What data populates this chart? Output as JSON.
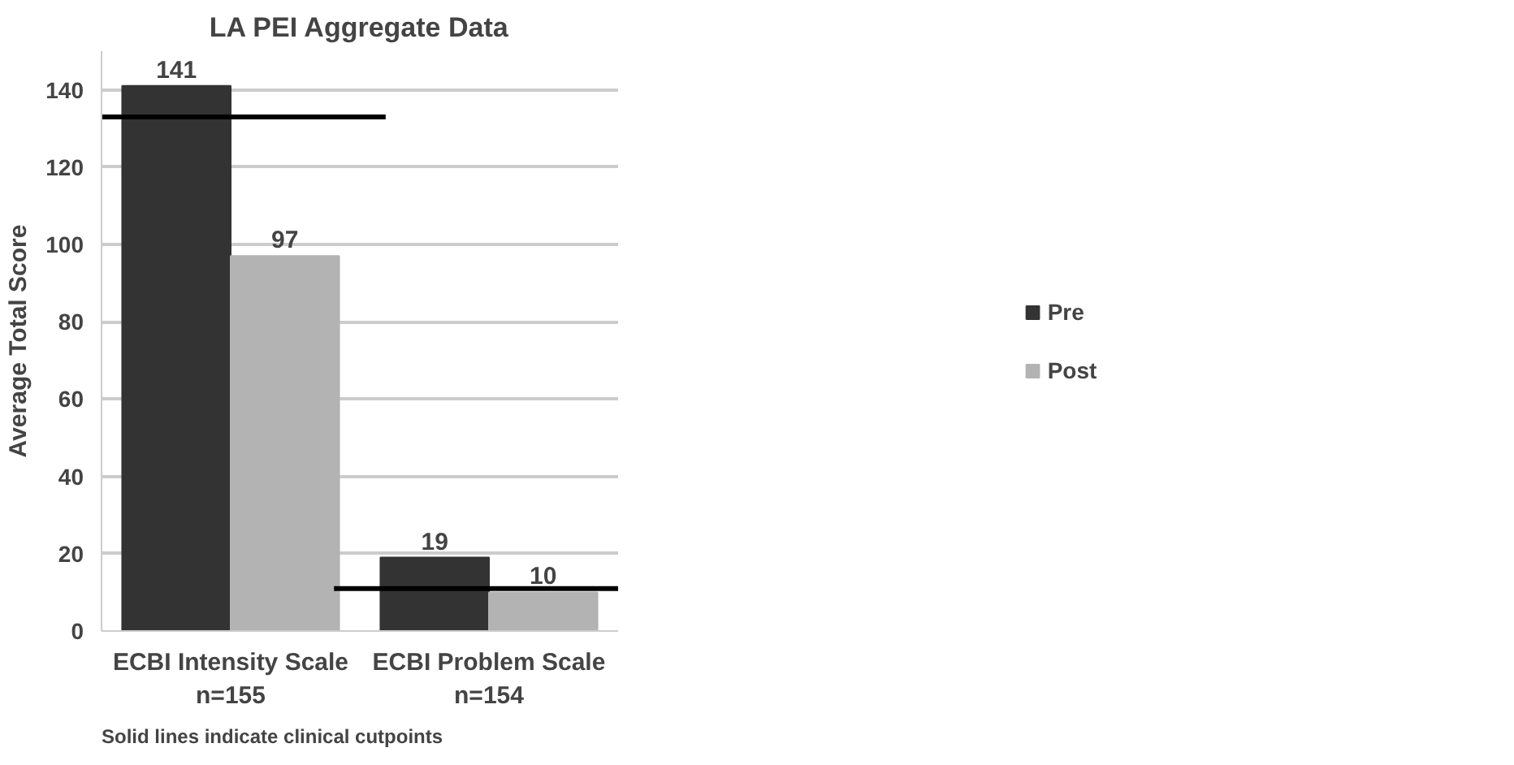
{
  "chart_data": {
    "type": "bar",
    "title": "LA PEI Aggregate Data",
    "ylabel": "Average Total Score",
    "categories": [
      "ECBI Intensity Scale\nn=155",
      "ECBI Problem Scale\nn=154"
    ],
    "series": [
      {
        "name": "Pre",
        "color": "#333333",
        "values": [
          141,
          19
        ]
      },
      {
        "name": "Post",
        "color": "#b3b3b3",
        "values": [
          97,
          10
        ]
      }
    ],
    "ylim": [
      0,
      150
    ],
    "yticks": [
      0,
      20,
      40,
      60,
      80,
      100,
      120,
      140
    ],
    "grid": "y",
    "legend": "right",
    "data_labels": true,
    "ref_lines": [
      {
        "axis": "y",
        "value": 133,
        "color": "#000000"
      },
      {
        "axis": "y",
        "value": 11,
        "color": "#000000"
      }
    ],
    "annotations": [
      "Solid lines indicate clinical cutpoints"
    ]
  }
}
